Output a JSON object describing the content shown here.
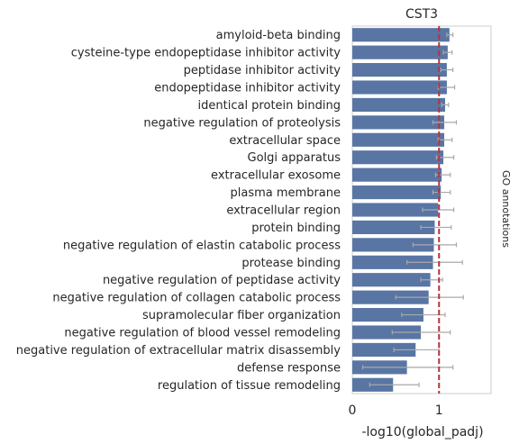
{
  "chart_data": {
    "type": "bar",
    "orientation": "horizontal",
    "title": "CST3",
    "xlabel": "-log10(global_padj)",
    "right_label": "GO annotations",
    "xlim": [
      0,
      1.6
    ],
    "xticks": [
      "0",
      "1"
    ],
    "xtick_values": [
      0,
      1
    ],
    "threshold": 1,
    "colors": {
      "bar": "#5875a4",
      "threshold": "#b5343d",
      "error": "#a9a9a9",
      "frame": "#cccccc"
    },
    "categories": [
      "amyloid-beta binding",
      "cysteine-type endopeptidase inhibitor activity",
      "peptidase inhibitor activity",
      "endopeptidase inhibitor activity",
      "identical protein binding",
      "negative regulation of proteolysis",
      "extracellular space",
      "Golgi apparatus",
      "extracellular exosome",
      "plasma membrane",
      "extracellular region",
      "protein binding",
      "negative regulation of elastin catabolic process",
      "protease binding",
      "negative regulation of peptidase activity",
      "negative regulation of collagen catabolic process",
      "supramolecular fiber organization",
      "negative regulation of blood vessel remodeling",
      "negative regulation of extracellular matrix disassembly",
      "defense response",
      "regulation of tissue remodeling"
    ],
    "values": [
      1.12,
      1.1,
      1.09,
      1.09,
      1.07,
      1.06,
      1.06,
      1.05,
      1.03,
      1.02,
      0.99,
      0.95,
      0.94,
      0.93,
      0.9,
      0.88,
      0.82,
      0.79,
      0.73,
      0.63,
      0.47
    ],
    "error_low": [
      1.09,
      1.05,
      1.02,
      0.99,
      1.03,
      0.93,
      0.99,
      0.97,
      0.96,
      0.93,
      0.81,
      0.79,
      0.7,
      0.63,
      0.79,
      0.5,
      0.57,
      0.46,
      0.48,
      0.12,
      0.2
    ],
    "error_high": [
      1.16,
      1.15,
      1.16,
      1.18,
      1.11,
      1.2,
      1.15,
      1.17,
      1.13,
      1.13,
      1.17,
      1.14,
      1.2,
      1.27,
      1.04,
      1.28,
      1.07,
      1.13,
      1.0,
      1.16,
      0.77
    ]
  }
}
